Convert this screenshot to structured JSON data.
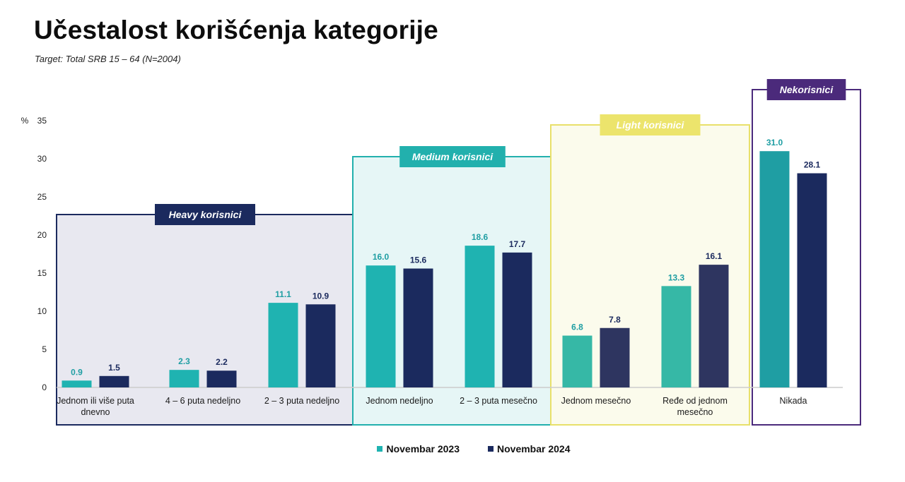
{
  "title": "Učestalost korišćenja kategorije",
  "subtitle": "Target: Total SRB 15 – 64 (N=2004)",
  "chart_data": {
    "type": "bar",
    "y_unit": "%",
    "ylim": [
      0,
      35
    ],
    "yticks": [
      0,
      5,
      10,
      15,
      20,
      25,
      30,
      35
    ],
    "grid": false,
    "legend_position": "bottom-center",
    "categories": [
      "Jednom ili više puta dnevno",
      "4 – 6 puta nedeljno",
      "2 – 3 puta nedeljno",
      "Jednom nedeljno",
      "2 – 3 puta mesečno",
      "Jednom mesečno",
      "Ređe od jednom mesečno",
      "Nikada"
    ],
    "category_lines": [
      [
        "Jednom ili više puta",
        "dnevno"
      ],
      [
        "4 – 6 puta nedeljno"
      ],
      [
        "2 – 3 puta nedeljno"
      ],
      [
        "Jednom nedeljno"
      ],
      [
        "2 – 3 puta mesečno"
      ],
      [
        "Jednom mesečno"
      ],
      [
        "Ređe od jednom",
        "mesečno"
      ],
      [
        "Nikada"
      ]
    ],
    "series": [
      {
        "name": "Novembar 2023",
        "values": [
          0.9,
          2.3,
          11.1,
          16.0,
          18.6,
          6.8,
          13.3,
          31.0
        ]
      },
      {
        "name": "Novembar 2024",
        "values": [
          1.5,
          2.2,
          10.9,
          15.6,
          17.7,
          7.8,
          16.1,
          28.1
        ]
      }
    ],
    "groups": [
      {
        "label": "Heavy korisnici",
        "categories": [
          0,
          1,
          2
        ],
        "box_color": "#1b2a5e",
        "fill": "#e8e8f0",
        "label_bg": "#1b2a5e",
        "label_color": "#ffffff"
      },
      {
        "label": "Medium korisnici",
        "categories": [
          3,
          4
        ],
        "box_color": "#22b0ad",
        "fill": "#e6f6f6",
        "label_bg": "#22b0ad",
        "label_color": "#ffffff"
      },
      {
        "label": "Light korisnici",
        "categories": [
          5,
          6
        ],
        "box_color": "#e8e06a",
        "fill": "#fbfbec",
        "label_bg": "#ece46c",
        "label_color": "#ffffff"
      },
      {
        "label": "Nekorisnici",
        "categories": [
          7
        ],
        "box_color": "#4b2a7b",
        "fill": "#ffffff",
        "label_bg": "#4b2a7b",
        "label_color": "#ffffff"
      }
    ],
    "group_bar_colors": [
      [
        "#1fb3b1",
        "#1b2a5e"
      ],
      [
        "#1fb3b1",
        "#1b2a5e"
      ],
      [
        "#36b8a6",
        "#2e3560"
      ],
      [
        "#1f9ea3",
        "#1b2a5e"
      ]
    ],
    "colors": {
      "series_2023": "#1fb3b1",
      "series_2024": "#1b2a5e",
      "label_2023": "#1f9ea3",
      "label_2024": "#1b2a5e",
      "axis": "#cccccc"
    }
  }
}
